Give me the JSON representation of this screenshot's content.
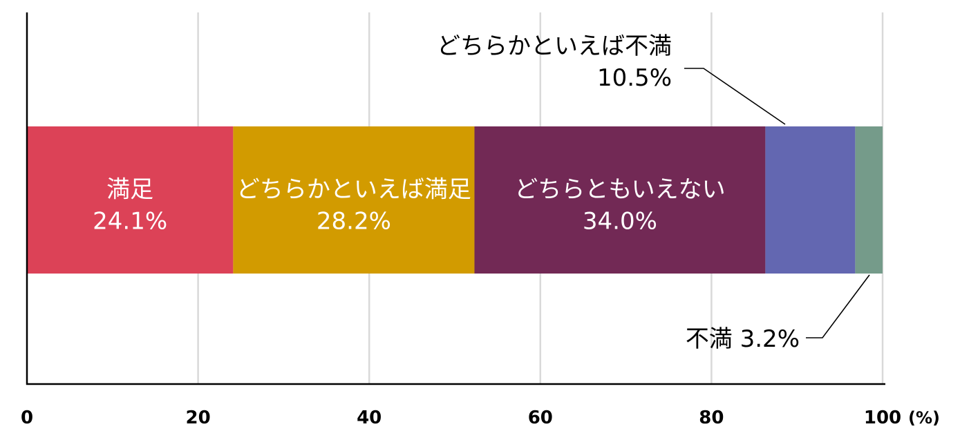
{
  "chart_data": {
    "type": "bar",
    "orientation": "horizontal",
    "stacked": true,
    "xlim": [
      0,
      100
    ],
    "x_ticks": [
      0,
      20,
      40,
      60,
      80,
      100
    ],
    "x_unit": "(%)",
    "grid": true,
    "series": [
      {
        "name": "満足",
        "value": 24.1,
        "value_label": "24.1%",
        "color": "#dc4257",
        "label_position": "inside"
      },
      {
        "name": "どちらかといえば満足",
        "value": 28.2,
        "value_label": "28.2%",
        "color": "#d29b00",
        "label_position": "inside"
      },
      {
        "name": "どちらともいえない",
        "value": 34.0,
        "value_label": "34.0%",
        "color": "#722955",
        "label_position": "inside"
      },
      {
        "name": "どちらかといえば不満",
        "value": 10.5,
        "value_label": "10.5%",
        "color": "#6367b1",
        "label_position": "above-right"
      },
      {
        "name": "不満",
        "value": 3.2,
        "value_label": "3.2%",
        "color": "#759b8a",
        "label_position": "below-right"
      }
    ]
  }
}
